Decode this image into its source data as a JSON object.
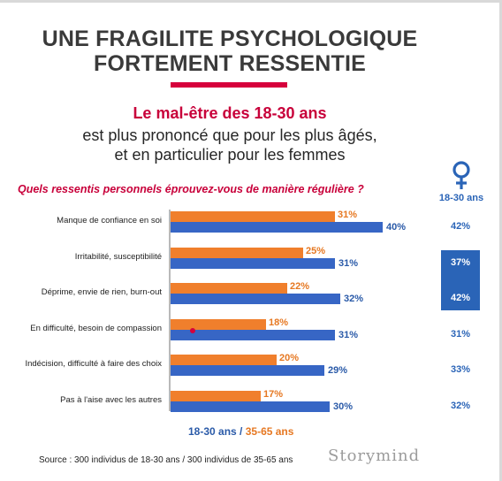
{
  "header": {
    "title_line1": "UNE FRAGILITE PSYCHOLOGIQUE",
    "title_line2": "FORTEMENT RESSENTIE",
    "subtitle_red": "Le mal-être des 18-30 ans",
    "subtitle_line2": "est plus prononcé que pour les plus âgés,",
    "subtitle_line3": "et en particulier pour les femmes",
    "question": "Quels ressentis personnels éprouvez-vous de manière régulière ?",
    "female_column_label": "18-30 ans",
    "accent_color": "#d6003c"
  },
  "chart_data": {
    "type": "bar",
    "orientation": "horizontal",
    "categories": [
      "Manque de confiance en soi",
      "Irritabilité, susceptibilité",
      "Déprime, envie de rien, burn-out",
      "En difficulté, besoin de compassion",
      "Indécision, difficulté à faire des choix",
      "Pas à l'aise avec les autres"
    ],
    "series": [
      {
        "name": "18-30 ans",
        "values": [
          40,
          31,
          32,
          31,
          29,
          30
        ],
        "labels": [
          "40%",
          "31%",
          "32%",
          "31%",
          "29%",
          "30%"
        ],
        "color": "#3766c5"
      },
      {
        "name": "35-65 ans",
        "values": [
          31,
          25,
          22,
          18,
          20,
          17
        ],
        "labels": [
          "31%",
          "25%",
          "22%",
          "18%",
          "20%",
          "17%"
        ],
        "color": "#f07f2c"
      }
    ],
    "female_18_30": {
      "values": [
        42,
        37,
        42,
        31,
        33,
        32
      ],
      "labels": [
        "42%",
        "37%",
        "42%",
        "31%",
        "33%",
        "32%"
      ],
      "highlighted": [
        false,
        true,
        true,
        false,
        false,
        false
      ]
    },
    "legend": {
      "young": "18-30 ans",
      "separator": "/",
      "old": "35-65 ans",
      "position": "bottom"
    },
    "xlim": [
      0,
      100
    ],
    "grid": false
  },
  "footer": {
    "source": "Source : 300 individus de 18-30 ans / 300 individus de 35-65 ans",
    "logo": "Storymind"
  }
}
